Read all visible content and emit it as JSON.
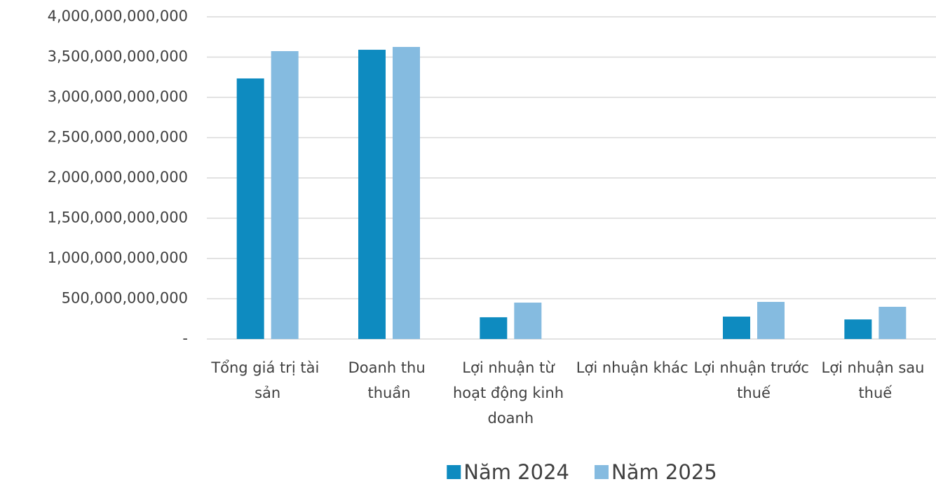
{
  "chart_data": {
    "type": "bar",
    "categories": [
      "Tổng giá trị tài sản",
      "Doanh thu thuần",
      "Lợi nhuận từ hoạt động kinh doanh",
      "Lợi nhuận khác",
      "Lợi nhuận trước thuế",
      "Lợi nhuận sau thuế"
    ],
    "series": [
      {
        "name": "Năm 2024",
        "color": "#0e8bc0",
        "values": [
          3235000000000,
          3591000000000,
          270000000000,
          0,
          278000000000,
          243000000000
        ]
      },
      {
        "name": "Năm 2025",
        "color": "#85bbe0",
        "values": [
          3574000000000,
          3626000000000,
          452000000000,
          0,
          461000000000,
          400000000000
        ]
      }
    ],
    "ylim": [
      0,
      4000000000000
    ],
    "yticks": [
      {
        "value": 0,
        "label": "-"
      },
      {
        "value": 500000000000,
        "label": "500,000,000,000"
      },
      {
        "value": 1000000000000,
        "label": "1,000,000,000,000"
      },
      {
        "value": 1500000000000,
        "label": "1,500,000,000,000"
      },
      {
        "value": 2000000000000,
        "label": "2,000,000,000,000"
      },
      {
        "value": 2500000000000,
        "label": "2,500,000,000,000"
      },
      {
        "value": 3000000000000,
        "label": "3,000,000,000,000"
      },
      {
        "value": 3500000000000,
        "label": "3,500,000,000,000"
      },
      {
        "value": 4000000000000,
        "label": "4,000,000,000,000"
      }
    ],
    "grid": true,
    "legend": "bottom"
  }
}
